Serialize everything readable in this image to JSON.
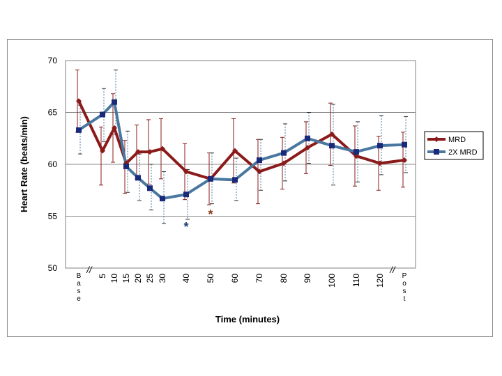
{
  "chart_data": {
    "type": "line",
    "xlabel": "Time (minutes)",
    "ylabel": "Heart Rate (beats/min)",
    "ylim": [
      50,
      70
    ],
    "yticks": [
      50,
      55,
      60,
      65,
      70
    ],
    "grid": "horizontal",
    "legend_position": "right",
    "categories": [
      "Base",
      "5",
      "10",
      "15",
      "20",
      "25",
      "30",
      "40",
      "50",
      "60",
      "70",
      "80",
      "90",
      "100",
      "110",
      "120",
      "Post"
    ],
    "axis_breaks": [
      "//",
      "//"
    ],
    "series": [
      {
        "name": "MRD",
        "color": "#8b1a1a",
        "marker": "diamond",
        "values": [
          66.1,
          61.3,
          63.5,
          60.1,
          61.2,
          61.2,
          61.5,
          59.3,
          58.6,
          61.3,
          59.3,
          60.1,
          61.6,
          62.9,
          60.8,
          60.1,
          60.4
        ],
        "error_upper": [
          69.1,
          63.6,
          66.8,
          62.3,
          63.8,
          64.3,
          64.4,
          62.0,
          61.1,
          64.4,
          62.4,
          62.6,
          64.1,
          65.9,
          63.7,
          62.7,
          63.1
        ],
        "error_lower": [
          63.1,
          58.0,
          60.2,
          57.2,
          58.6,
          58.1,
          58.6,
          56.6,
          56.1,
          58.2,
          56.2,
          57.6,
          59.1,
          59.9,
          57.9,
          57.5,
          57.8
        ]
      },
      {
        "name": "2X MRD",
        "color": "#4a77a0",
        "marker": "square",
        "values": [
          63.3,
          64.8,
          66.0,
          59.8,
          58.7,
          57.7,
          56.7,
          57.1,
          58.6,
          58.5,
          60.4,
          61.1,
          62.5,
          61.8,
          61.2,
          61.8,
          61.9
        ],
        "error_upper": [
          65.7,
          67.3,
          69.1,
          63.2,
          61.0,
          60.0,
          59.3,
          59.5,
          61.1,
          60.6,
          62.4,
          63.9,
          65.0,
          65.8,
          64.1,
          64.7,
          64.6
        ],
        "error_lower": [
          61.0,
          62.2,
          62.9,
          57.3,
          56.5,
          55.6,
          54.3,
          54.7,
          56.2,
          56.5,
          57.5,
          58.4,
          60.1,
          58.0,
          58.3,
          59.0,
          59.2
        ]
      }
    ],
    "annotations": [
      {
        "text": "*",
        "x": "40",
        "y": 54.1,
        "color": "#1f3d7a"
      },
      {
        "text": "*",
        "x": "50",
        "y": 55.3,
        "color": "#8b3a1a"
      }
    ]
  }
}
